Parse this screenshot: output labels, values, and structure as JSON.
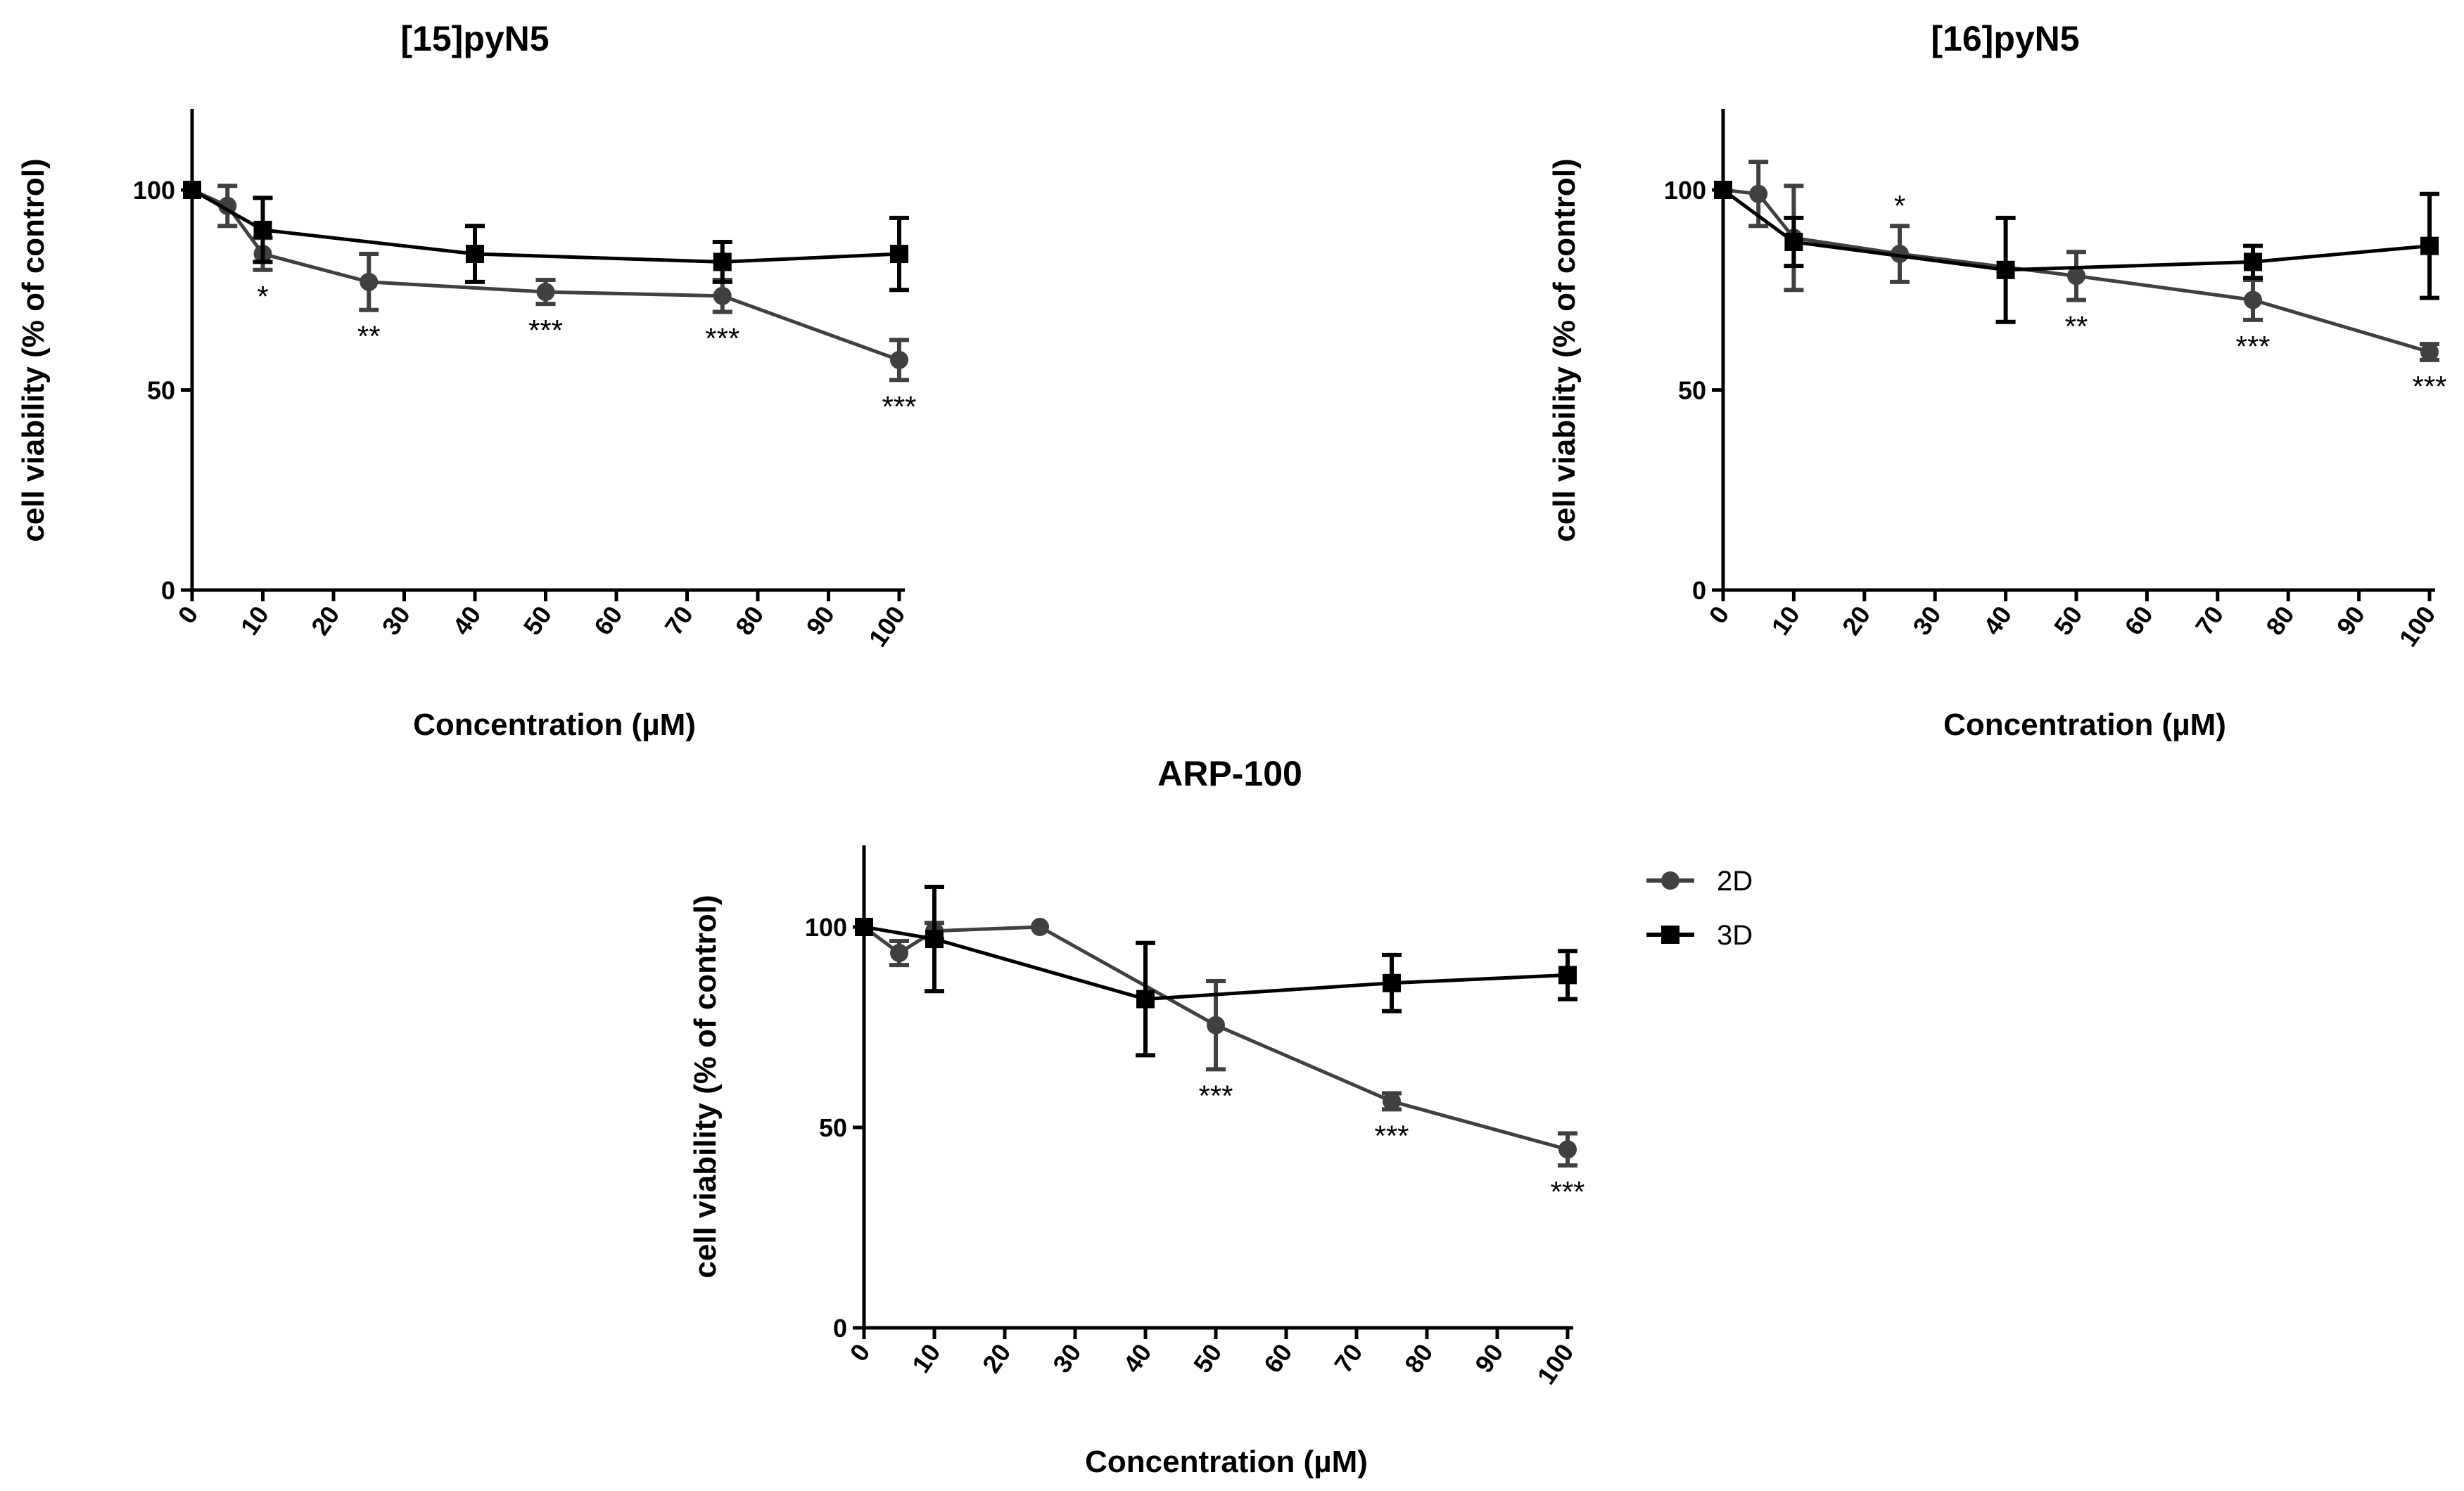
{
  "legend": {
    "entries": [
      {
        "name": "2D",
        "color": "#404040",
        "marker": "circle"
      },
      {
        "name": "3D",
        "color": "#000000",
        "marker": "square"
      }
    ]
  },
  "chart_data": [
    {
      "id": "panel-15pyn5",
      "type": "line",
      "title": "[15]pyN5",
      "xlabel": "Concentration (µM)",
      "ylabel": "cell viability (% of control)",
      "xlim": [
        0,
        100
      ],
      "ylim": [
        0,
        120
      ],
      "xticks": [
        0,
        10,
        20,
        30,
        40,
        50,
        60,
        70,
        80,
        90,
        100
      ],
      "yticks": [
        0,
        50,
        100
      ],
      "series": [
        {
          "name": "2D",
          "x": [
            0,
            5,
            10,
            25,
            50,
            75,
            100
          ],
          "y": [
            100,
            96,
            84,
            77,
            74.5,
            73.5,
            57.5
          ],
          "err": [
            0,
            5,
            4,
            7,
            3,
            4,
            5
          ],
          "significance": [
            "",
            "",
            "*",
            "**",
            "***",
            "***",
            "***"
          ]
        },
        {
          "name": "3D",
          "x": [
            0,
            10,
            40,
            75,
            100
          ],
          "y": [
            100,
            90,
            84,
            82,
            84
          ],
          "err": [
            0,
            8,
            7,
            5,
            9
          ]
        }
      ]
    },
    {
      "id": "panel-16pyn5",
      "type": "line",
      "title": "[16]pyN5",
      "xlabel": "Concentration (µM)",
      "ylabel": "cell viability (% of control)",
      "xlim": [
        0,
        100
      ],
      "ylim": [
        0,
        120
      ],
      "xticks": [
        0,
        10,
        20,
        30,
        40,
        50,
        60,
        70,
        80,
        90,
        100
      ],
      "yticks": [
        0,
        50,
        100
      ],
      "series": [
        {
          "name": "2D",
          "x": [
            0,
            5,
            10,
            25,
            50,
            75,
            100
          ],
          "y": [
            100,
            99,
            88,
            84,
            78.5,
            72.5,
            59.5
          ],
          "err": [
            0,
            8,
            13,
            7,
            6,
            5,
            2
          ],
          "significance": [
            "",
            "",
            "",
            "*",
            "**",
            "***",
            "***"
          ]
        },
        {
          "name": "3D",
          "x": [
            0,
            10,
            40,
            75,
            100
          ],
          "y": [
            100,
            87,
            80,
            82,
            86
          ],
          "err": [
            0,
            6,
            13,
            4,
            13
          ]
        }
      ]
    },
    {
      "id": "panel-arp100",
      "type": "line",
      "title": "ARP-100",
      "xlabel": "Concentration (µM)",
      "ylabel": "cell viability (% of control)",
      "xlim": [
        0,
        100
      ],
      "ylim": [
        0,
        120
      ],
      "xticks": [
        0,
        10,
        20,
        30,
        40,
        50,
        60,
        70,
        80,
        90,
        100
      ],
      "yticks": [
        0,
        50,
        100
      ],
      "series": [
        {
          "name": "2D",
          "x": [
            0,
            5,
            10,
            25,
            50,
            75,
            100
          ],
          "y": [
            100,
            93.5,
            99,
            100,
            75.5,
            56.5,
            44.5
          ],
          "err": [
            0,
            3,
            2,
            0,
            11,
            2,
            4
          ],
          "significance": [
            "",
            "",
            "",
            "",
            "***",
            "***",
            "***"
          ]
        },
        {
          "name": "3D",
          "x": [
            0,
            10,
            40,
            75,
            100
          ],
          "y": [
            100,
            97,
            82,
            86,
            88
          ],
          "err": [
            0,
            13,
            14,
            7,
            6
          ]
        }
      ]
    }
  ]
}
